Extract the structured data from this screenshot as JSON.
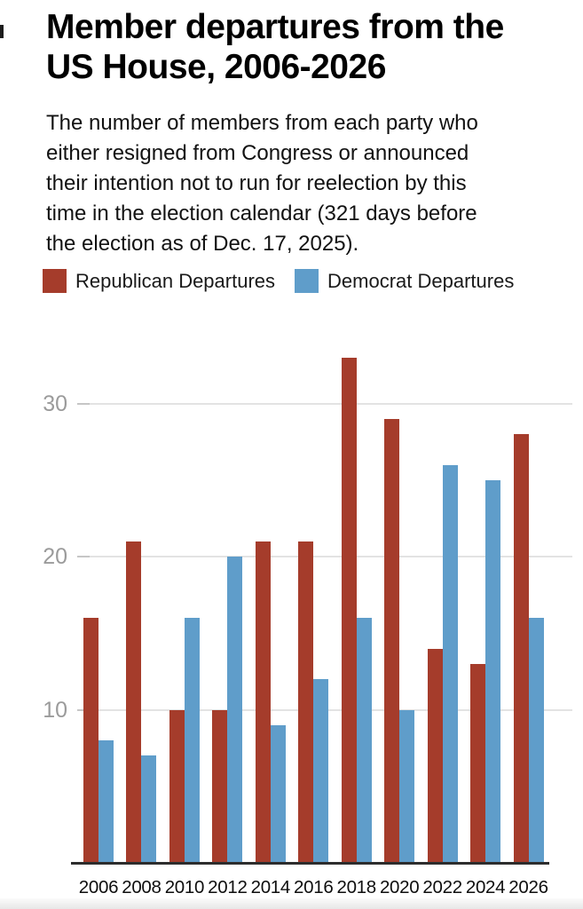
{
  "header": {
    "title": "Member departures from the US House, 2006-2026",
    "subtitle": "The number of members from each party who either resigned from Congress or announced their intention not to run for reelection by this time in the election calendar (321 days before the election as of Dec. 17, 2025)."
  },
  "legend": {
    "items": [
      {
        "label": "Republican Departures",
        "color": "#a53c2b"
      },
      {
        "label": "Democrat Departures",
        "color": "#5f9dca"
      }
    ]
  },
  "chart_data": {
    "type": "bar",
    "title": "Member departures from the US House, 2006-2026",
    "categories": [
      "2006",
      "2008",
      "2010",
      "2012",
      "2014",
      "2016",
      "2018",
      "2020",
      "2022",
      "2024",
      "2026"
    ],
    "series": [
      {
        "name": "Republican Departures",
        "color": "#a53c2b",
        "values": [
          16,
          21,
          10,
          10,
          21,
          21,
          33,
          29,
          14,
          13,
          28
        ]
      },
      {
        "name": "Democrat Departures",
        "color": "#5f9dca",
        "values": [
          8,
          7,
          16,
          20,
          9,
          12,
          16,
          10,
          26,
          25,
          16
        ]
      }
    ],
    "xlabel": "",
    "ylabel": "",
    "yticks": [
      10,
      20,
      30
    ],
    "ylim": [
      0,
      34
    ],
    "grid": "horizontal-only",
    "legend_position": "top"
  },
  "style": {
    "gridline_color": "#e3e3e3",
    "tick_color": "#c6c6c6",
    "axis_color": "#2d2d2d",
    "y_label_color": "#9b9b9b",
    "x_label_color": "#0e0e0e"
  }
}
